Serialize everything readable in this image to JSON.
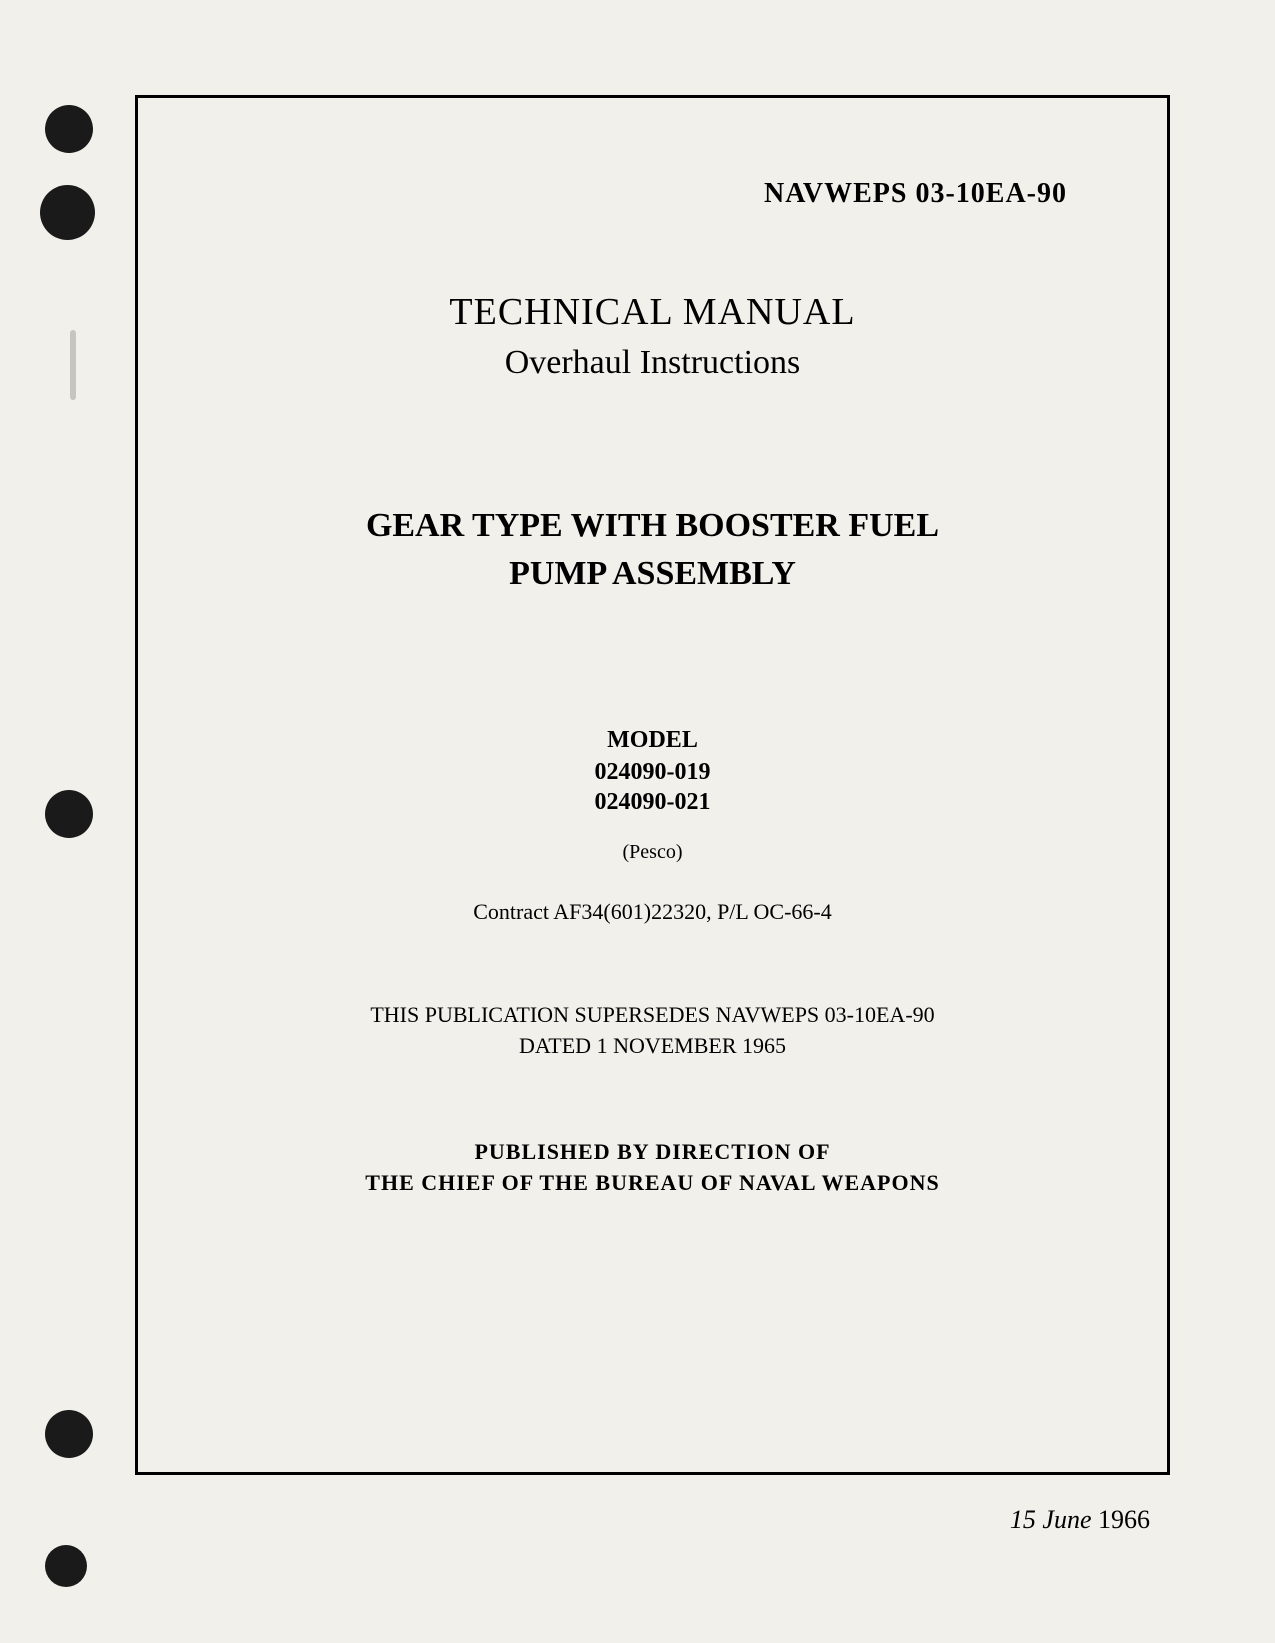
{
  "document": {
    "docNumber": "NAVWEPS 03-10EA-90",
    "titleMain": "TECHNICAL MANUAL",
    "subtitle": "Overhaul Instructions",
    "equipmentTitleLine1": "GEAR TYPE WITH BOOSTER FUEL",
    "equipmentTitleLine2": "PUMP ASSEMBLY",
    "modelHeading": "MODEL",
    "modelNumber1": "024090-019",
    "modelNumber2": "024090-021",
    "manufacturer": "(Pesco)",
    "contract": "Contract AF34(601)22320, P/L OC-66-4",
    "supersedesLine1": "THIS PUBLICATION SUPERSEDES NAVWEPS 03-10EA-90",
    "supersedesLine2": "DATED 1 NOVEMBER 1965",
    "publisherLine1": "PUBLISHED BY DIRECTION OF",
    "publisherLine2": "THE CHIEF OF THE BUREAU OF NAVAL WEAPONS",
    "dateDay": "15",
    "dateMonth": "June",
    "dateYear": "1966"
  },
  "styling": {
    "backgroundColor": "#f2f0eb",
    "textColor": "#000000",
    "borderColor": "#000000",
    "punchHoleColor": "#1a1a1a",
    "pageWidth": 1275,
    "pageHeight": 1643,
    "borderWidth": 3,
    "fontFamily": "Times New Roman"
  }
}
